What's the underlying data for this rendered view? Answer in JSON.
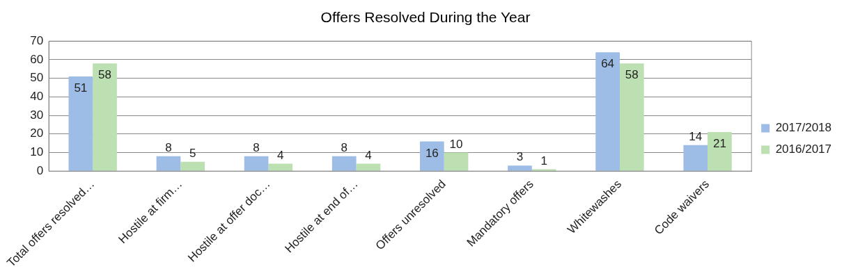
{
  "chart_data": {
    "type": "bar",
    "title": "Offers Resolved During the Year",
    "categories": [
      "Total offers resolved…",
      "Hostile at firm…",
      "Hostile at offer doc…",
      "Hostile at end of…",
      "Offers unresolved",
      "Mandatory offers",
      "Whitewashes",
      "Code waivers"
    ],
    "series": [
      {
        "name": "2017/2018",
        "color": "#9dbde6",
        "values": [
          51,
          8,
          8,
          8,
          16,
          3,
          64,
          14
        ]
      },
      {
        "name": "2016/2017",
        "color": "#bde0b2",
        "values": [
          58,
          5,
          4,
          4,
          10,
          1,
          58,
          21
        ]
      }
    ],
    "ylim": [
      0,
      70
    ],
    "yticks": [
      0,
      10,
      20,
      30,
      40,
      50,
      60,
      70
    ],
    "grid": "y",
    "legend": "right",
    "data_labels": true
  }
}
